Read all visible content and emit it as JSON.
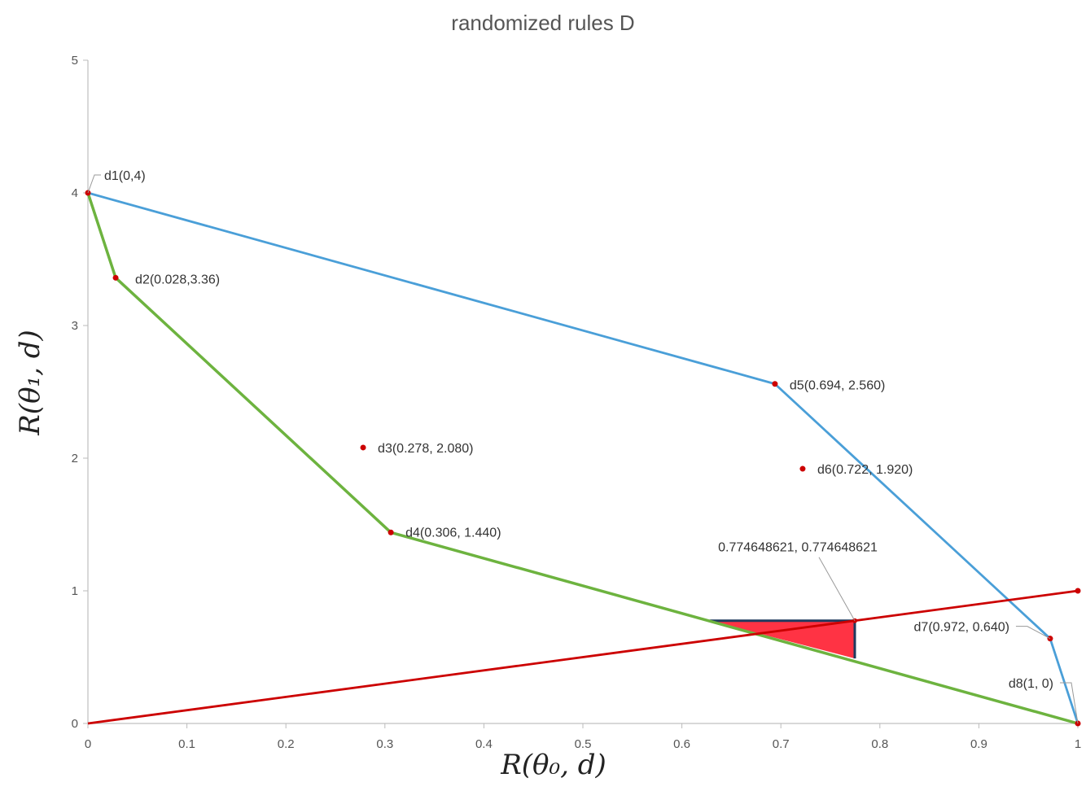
{
  "chart_data": {
    "type": "line",
    "title": "randomized rules D",
    "xlabel": "R(θ₀, d)",
    "ylabel": "R(θ₁, d)",
    "xlim": [
      0,
      1
    ],
    "ylim": [
      0,
      5
    ],
    "x_ticks": [
      "0",
      "0.1",
      "0.2",
      "0.3",
      "0.4",
      "0.5",
      "0.6",
      "0.7",
      "0.8",
      "0.9",
      "1"
    ],
    "y_ticks": [
      "0",
      "1",
      "2",
      "3",
      "4",
      "5"
    ],
    "grid": false,
    "points": [
      {
        "name": "d1",
        "label": "d1(0,4)",
        "x": 0,
        "y": 4
      },
      {
        "name": "d2",
        "label": "d2(0.028,3.36)",
        "x": 0.028,
        "y": 3.36
      },
      {
        "name": "d3",
        "label": "d3(0.278, 2.080)",
        "x": 0.278,
        "y": 2.08
      },
      {
        "name": "d4",
        "label": "d4(0.306, 1.440)",
        "x": 0.306,
        "y": 1.44
      },
      {
        "name": "d5",
        "label": "d5(0.694, 2.560)",
        "x": 0.694,
        "y": 2.56
      },
      {
        "name": "d6",
        "label": "d6(0.722, 1.920)",
        "x": 0.722,
        "y": 1.92
      },
      {
        "name": "d7",
        "label": "d7(0.972, 0.640)",
        "x": 0.972,
        "y": 0.64
      },
      {
        "name": "d8",
        "label": "d8(1, 0)",
        "x": 1,
        "y": 0
      }
    ],
    "series": [
      {
        "color": "#4a9fd8",
        "values": [
          [
            0,
            4
          ],
          [
            0.694,
            2.56
          ],
          [
            0.972,
            0.64
          ],
          [
            1,
            0
          ],
          [
            0.306,
            1.44
          ],
          [
            0.028,
            3.36
          ],
          [
            0,
            4
          ]
        ]
      },
      {
        "color": "#6db33f",
        "values": [
          [
            0,
            4
          ],
          [
            0.028,
            3.36
          ],
          [
            0.306,
            1.44
          ],
          [
            1,
            0
          ]
        ]
      },
      {
        "color": "#cc0000",
        "values": [
          [
            0,
            0
          ],
          [
            1,
            1
          ]
        ]
      }
    ],
    "highlight": {
      "label": "0.774648621, 0.774648621",
      "x": 0.774648621,
      "y": 0.774648621,
      "fill_color": "#ff3344",
      "edge_color": "#1f3a5f"
    }
  }
}
